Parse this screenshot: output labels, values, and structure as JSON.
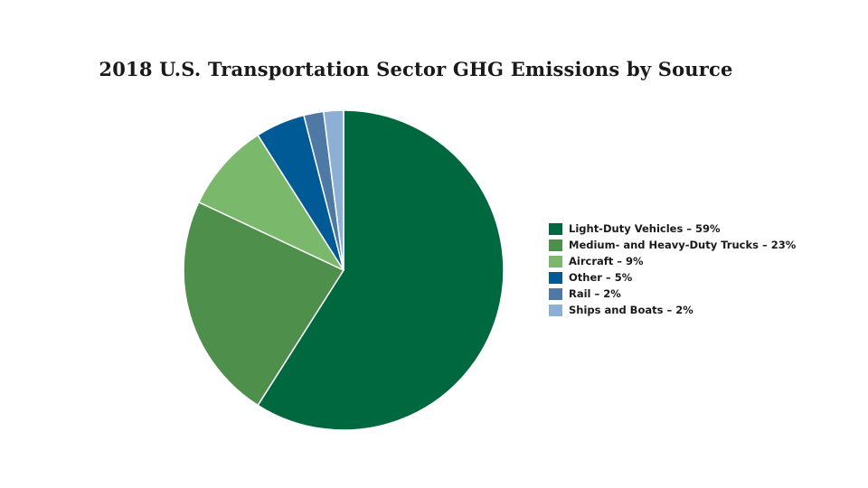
{
  "chart_data": {
    "type": "pie",
    "title": "2018 U.S. Transportation Sector GHG Emissions by Source",
    "legend_position": "right",
    "slices": [
      {
        "label": "Light-Duty Vehicles – 59%",
        "value": 59,
        "color": "#00683F"
      },
      {
        "label": "Medium- and Heavy-Duty Trucks – 23%",
        "value": 23,
        "color": "#4E904B"
      },
      {
        "label": "Aircraft – 9%",
        "value": 9,
        "color": "#7AB86C"
      },
      {
        "label": "Other – 5%",
        "value": 5,
        "color": "#005A96"
      },
      {
        "label": "Rail – 2%",
        "value": 2,
        "color": "#4E79A5"
      },
      {
        "label": "Ships and Boats – 2%",
        "value": 2,
        "color": "#8EAFD4"
      }
    ]
  }
}
